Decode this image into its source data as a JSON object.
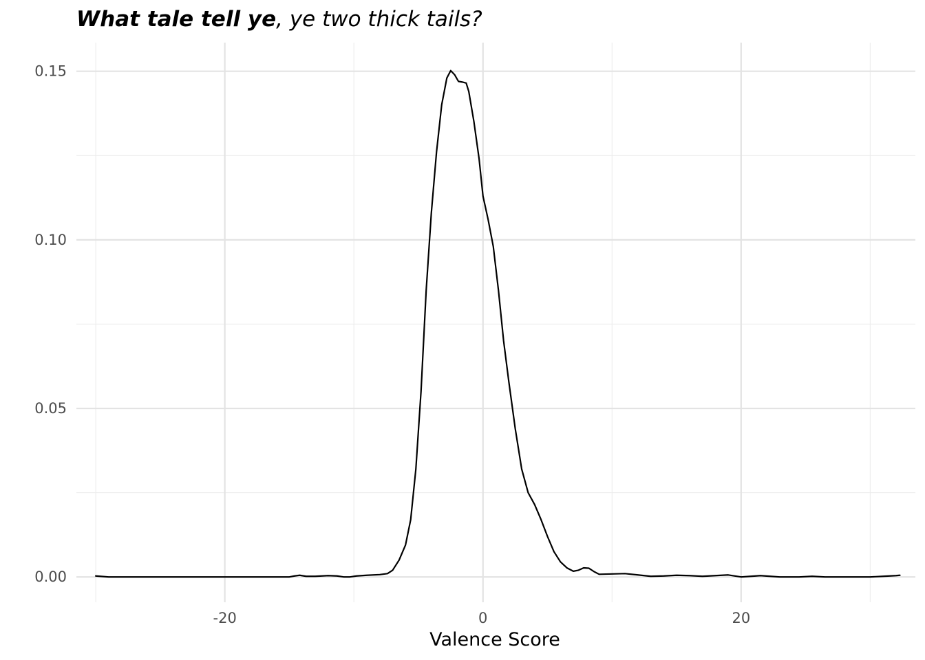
{
  "chart_data": {
    "type": "area",
    "title_bold": "What tale tell ye",
    "title_rest": ", ye two thick tails?",
    "xlabel": "Valence Score",
    "ylabel": "",
    "xlim": [
      -31.5,
      33.5
    ],
    "ylim": [
      -0.0075,
      0.1585
    ],
    "grid": true,
    "x_major_ticks": [
      -20,
      0,
      20
    ],
    "x_tick_labels": [
      "-20",
      "0",
      "20"
    ],
    "x_minor_ticks": [
      -30,
      -10,
      10,
      30
    ],
    "y_major_ticks": [
      0.0,
      0.05,
      0.1,
      0.15
    ],
    "y_tick_labels": [
      "0.00",
      "0.05",
      "0.10",
      "0.15"
    ],
    "y_minor_ticks": [
      0.025,
      0.075,
      0.125
    ],
    "series": [
      {
        "line_color": "#000000",
        "points": [
          [
            -30.0,
            0.0003
          ],
          [
            -29.0,
            0.0
          ],
          [
            -27.0,
            0.0
          ],
          [
            -24.0,
            0.0
          ],
          [
            -20.0,
            0.0
          ],
          [
            -18.0,
            0.0
          ],
          [
            -15.0,
            0.0
          ],
          [
            -14.6,
            0.0003
          ],
          [
            -14.2,
            0.0005
          ],
          [
            -13.7,
            0.0002
          ],
          [
            -13.0,
            0.0002
          ],
          [
            -12.0,
            0.0004
          ],
          [
            -11.3,
            0.0003
          ],
          [
            -10.8,
            0.0
          ],
          [
            -10.3,
            0.0
          ],
          [
            -9.8,
            0.0003
          ],
          [
            -9.0,
            0.0005
          ],
          [
            -8.0,
            0.0007
          ],
          [
            -7.4,
            0.001
          ],
          [
            -7.0,
            0.002
          ],
          [
            -6.5,
            0.005
          ],
          [
            -6.0,
            0.0095
          ],
          [
            -5.6,
            0.017
          ],
          [
            -5.2,
            0.032
          ],
          [
            -4.8,
            0.055
          ],
          [
            -4.4,
            0.085
          ],
          [
            -4.0,
            0.108
          ],
          [
            -3.6,
            0.126
          ],
          [
            -3.2,
            0.14
          ],
          [
            -2.8,
            0.148
          ],
          [
            -2.5,
            0.1502
          ],
          [
            -2.2,
            0.149
          ],
          [
            -1.9,
            0.147
          ],
          [
            -1.6,
            0.1468
          ],
          [
            -1.3,
            0.1465
          ],
          [
            -1.1,
            0.144
          ],
          [
            -0.7,
            0.135
          ],
          [
            -0.3,
            0.124
          ],
          [
            0.0,
            0.113
          ],
          [
            0.4,
            0.106
          ],
          [
            0.8,
            0.098
          ],
          [
            1.2,
            0.085
          ],
          [
            1.6,
            0.07
          ],
          [
            2.0,
            0.058
          ],
          [
            2.5,
            0.044
          ],
          [
            3.0,
            0.032
          ],
          [
            3.5,
            0.025
          ],
          [
            4.0,
            0.0215
          ],
          [
            4.5,
            0.017
          ],
          [
            5.0,
            0.012
          ],
          [
            5.5,
            0.0075
          ],
          [
            6.0,
            0.0045
          ],
          [
            6.5,
            0.0027
          ],
          [
            7.0,
            0.0017
          ],
          [
            7.4,
            0.002
          ],
          [
            7.8,
            0.0027
          ],
          [
            8.2,
            0.0026
          ],
          [
            8.6,
            0.0016
          ],
          [
            9.0,
            0.0008
          ],
          [
            10.0,
            0.0009
          ],
          [
            11.0,
            0.001
          ],
          [
            12.0,
            0.0006
          ],
          [
            13.0,
            0.0002
          ],
          [
            14.0,
            0.0003
          ],
          [
            15.0,
            0.0005
          ],
          [
            16.0,
            0.0004
          ],
          [
            17.0,
            0.0002
          ],
          [
            18.0,
            0.0004
          ],
          [
            19.0,
            0.0006
          ],
          [
            20.0,
            0.0
          ],
          [
            21.5,
            0.0004
          ],
          [
            23.0,
            0.0
          ],
          [
            24.5,
            0.0
          ],
          [
            25.5,
            0.0002
          ],
          [
            26.5,
            0.0
          ],
          [
            27.5,
            0.0
          ],
          [
            29.0,
            0.0
          ],
          [
            30.0,
            0.0
          ],
          [
            31.0,
            0.0002
          ],
          [
            32.0,
            0.0004
          ],
          [
            32.3,
            0.0005
          ]
        ]
      }
    ]
  }
}
